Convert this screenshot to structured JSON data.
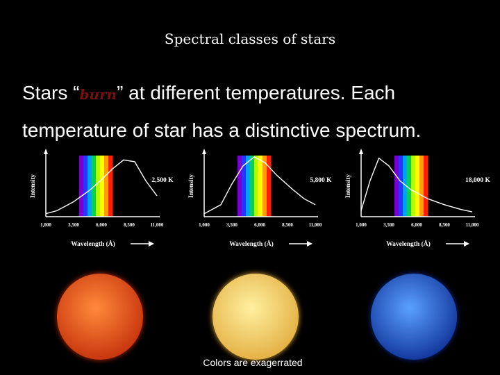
{
  "slide": {
    "title": "Spectral  classes   of stars",
    "body_prefix": "Stars “",
    "body_emph": "burn",
    "body_suffix": "” at different temperatures.  Each temperature of star has a distinctive spectrum.",
    "caption": "Colors are exagerrated"
  },
  "colors": {
    "background": "#000000",
    "text": "#ffffff",
    "burn_text": "#7a1010"
  },
  "chart_data": [
    {
      "type": "line",
      "ylabel": "Intensity",
      "xlabel": "Wavelength (Å)",
      "temperature_label": "2,500 K",
      "x_ticks": [
        "1,000",
        "3,500",
        "6,000",
        "8,500",
        "11,000"
      ],
      "x": [
        1000,
        2000,
        3500,
        5000,
        6000,
        7000,
        8000,
        9000,
        10000,
        11000
      ],
      "y": [
        0.05,
        0.1,
        0.25,
        0.45,
        0.62,
        0.8,
        0.95,
        0.92,
        0.6,
        0.35
      ],
      "peak_x": 8200,
      "visible_band": [
        4000,
        7000
      ]
    },
    {
      "type": "line",
      "ylabel": "Intensity",
      "xlabel": "Wavelength (Å)",
      "temperature_label": "5,800 K",
      "x_ticks": [
        "1,000",
        "3,500",
        "6,000",
        "8,500",
        "11,000"
      ],
      "x": [
        1000,
        2500,
        3500,
        4500,
        5500,
        6500,
        7500,
        9000,
        10000,
        11000
      ],
      "y": [
        0.05,
        0.2,
        0.55,
        0.85,
        1.0,
        0.9,
        0.7,
        0.45,
        0.3,
        0.2
      ],
      "peak_x": 5500,
      "visible_band": [
        4000,
        7000
      ]
    },
    {
      "type": "line",
      "ylabel": "Intensity",
      "xlabel": "Wavelength (Å)",
      "temperature_label": "18,000 K",
      "x_ticks": [
        "1,000",
        "3,500",
        "6,000",
        "8,500",
        "11,000"
      ],
      "x": [
        1000,
        1800,
        2600,
        3500,
        4500,
        5500,
        7000,
        8500,
        10000,
        11000
      ],
      "y": [
        0.1,
        0.6,
        0.98,
        0.85,
        0.6,
        0.45,
        0.3,
        0.2,
        0.12,
        0.08
      ],
      "peak_x": 2600,
      "visible_band": [
        4000,
        7000
      ]
    }
  ],
  "stars": [
    {
      "label_icon": "red-star",
      "color_center": "#ff8a3a",
      "color_edge": "#c02a08"
    },
    {
      "label_icon": "yellow-star",
      "color_center": "#fff0a0",
      "color_edge": "#e0a838"
    },
    {
      "label_icon": "blue-star",
      "color_center": "#5aa0ff",
      "color_edge": "#0a2a90"
    }
  ]
}
